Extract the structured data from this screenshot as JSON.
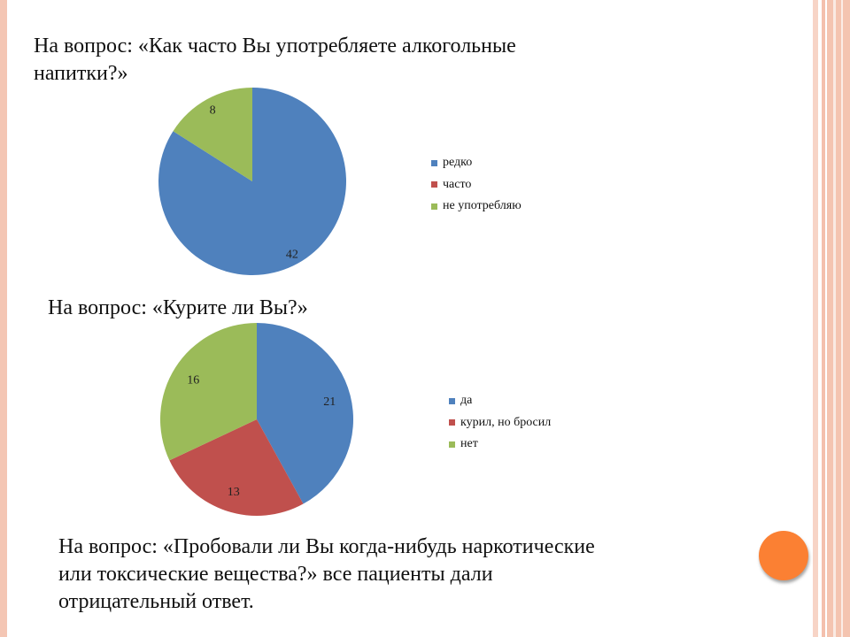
{
  "slide": {
    "question1": "На вопрос: «Как часто Вы употребляете алкогольные напитки?»",
    "question2": "На вопрос: «Курите ли Вы?»",
    "question3": "На вопрос: «Пробовали ли Вы когда-нибудь наркотические или токсические вещества?» все пациенты дали отрицательный ответ."
  },
  "colors": {
    "blue": "#4f81bd",
    "red": "#c0504d",
    "green": "#9bbb59",
    "accent_orange": "#fb8033"
  },
  "chart_data": [
    {
      "type": "pie",
      "categories": [
        "редко",
        "часто",
        "не употребляю"
      ],
      "values": [
        42,
        0,
        8
      ],
      "data_labels": [
        "42",
        "",
        "8"
      ],
      "legend": "right"
    },
    {
      "type": "pie",
      "categories": [
        "да",
        "курил, но бросил",
        "нет"
      ],
      "values": [
        21,
        13,
        16
      ],
      "data_labels": [
        "21",
        "13",
        "16"
      ],
      "legend": "right"
    }
  ]
}
